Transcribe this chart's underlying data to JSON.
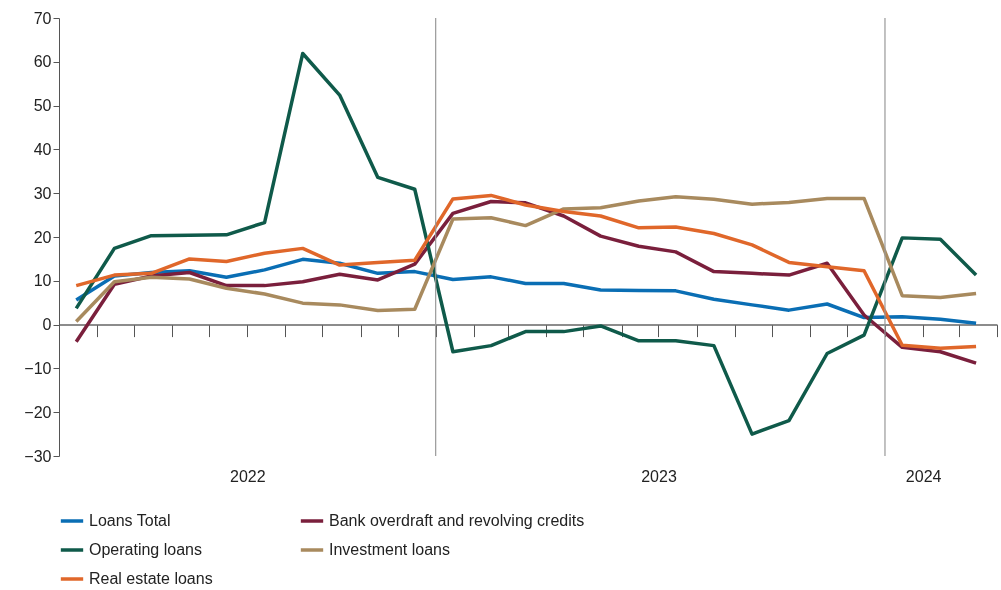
{
  "chart_data": {
    "type": "line",
    "x": [
      "2022-03-15",
      "2022-04-15",
      "2022-05-15",
      "2022-06-15",
      "2022-07-15",
      "2022-08-15",
      "2022-09-15",
      "2022-10-15",
      "2022-11-15",
      "2022-12-15",
      "2023-01-15",
      "2023-02-15",
      "2023-03-15",
      "2023-04-15",
      "2023-05-15",
      "2023-06-15",
      "2023-07-15",
      "2023-08-15",
      "2023-09-15",
      "2023-10-15",
      "2023-11-15",
      "2023-12-15",
      "2024-01-15",
      "2024-02-15",
      "2024-03-15"
    ],
    "series": [
      {
        "name": "Loans Total",
        "color": "#0a6eb4",
        "values": [
          5.6,
          11.1,
          11.9,
          12.3,
          10.8,
          12.5,
          14.9,
          14.0,
          11.7,
          12.1,
          10.3,
          10.9,
          9.4,
          9.4,
          7.9,
          7.8,
          7.7,
          5.8,
          4.5,
          3.3,
          4.7,
          1.6,
          1.8,
          1.2,
          0.3
        ]
      },
      {
        "name": "Bank overdraft and revolving credits",
        "color": "#7a1f3c",
        "values": [
          -3.9,
          9.2,
          11.1,
          11.9,
          8.9,
          8.9,
          9.8,
          11.5,
          10.2,
          13.8,
          25.4,
          28.1,
          27.8,
          24.8,
          20.2,
          17.9,
          16.6,
          12.1,
          11.7,
          11.3,
          14.0,
          2.2,
          -5.2,
          -6.2,
          -8.8
        ]
      },
      {
        "name": "Operating loans",
        "color": "#0f5a4a",
        "values": [
          3.7,
          17.4,
          20.3,
          20.4,
          20.5,
          23.3,
          61.9,
          52.4,
          33.6,
          30.9,
          -6.2,
          -4.8,
          -1.6,
          -1.6,
          -0.3,
          -3.7,
          -3.7,
          -4.8,
          -25.0,
          -21.9,
          -6.6,
          -2.4,
          19.8,
          19.5,
          11.3
        ]
      },
      {
        "name": "Investment loans",
        "color": "#a88a5e",
        "values": [
          0.7,
          9.8,
          10.8,
          10.4,
          8.3,
          7.0,
          4.9,
          4.5,
          3.2,
          3.5,
          24.1,
          24.4,
          22.6,
          26.4,
          26.7,
          28.2,
          29.2,
          28.6,
          27.5,
          27.9,
          28.8,
          28.8,
          6.6,
          6.2,
          7.1
        ]
      },
      {
        "name": "Real estate loans",
        "color": "#e0672a",
        "values": [
          8.9,
          11.3,
          11.7,
          15.0,
          14.4,
          16.3,
          17.4,
          13.6,
          14.2,
          14.7,
          28.7,
          29.5,
          27.3,
          25.8,
          24.8,
          22.1,
          22.3,
          20.8,
          18.2,
          14.2,
          13.2,
          12.3,
          -4.7,
          -5.4,
          -5.0
        ]
      }
    ],
    "xlim": [
      "2022-03-01",
      "2024-04-01"
    ],
    "xticks": [
      {
        "value": "2022-04-01",
        "label": null
      },
      {
        "value": "2022-05-01",
        "label": null
      },
      {
        "value": "2022-06-01",
        "label": null
      },
      {
        "value": "2022-07-01",
        "label": null
      },
      {
        "value": "2022-08-01",
        "label": "2022"
      },
      {
        "value": "2022-09-01",
        "label": null
      },
      {
        "value": "2022-10-01",
        "label": null
      },
      {
        "value": "2022-11-01",
        "label": null
      },
      {
        "value": "2022-12-01",
        "label": null
      },
      {
        "value": "2023-01-01",
        "label": null
      },
      {
        "value": "2023-02-01",
        "label": null
      },
      {
        "value": "2023-03-01",
        "label": null
      },
      {
        "value": "2023-04-01",
        "label": null
      },
      {
        "value": "2023-05-01",
        "label": null
      },
      {
        "value": "2023-06-01",
        "label": null
      },
      {
        "value": "2023-07-01",
        "label": "2023"
      },
      {
        "value": "2023-08-01",
        "label": null
      },
      {
        "value": "2023-09-01",
        "label": null
      },
      {
        "value": "2023-10-01",
        "label": null
      },
      {
        "value": "2023-11-01",
        "label": null
      },
      {
        "value": "2023-12-01",
        "label": null
      },
      {
        "value": "2024-01-01",
        "label": null
      },
      {
        "value": "2024-02-01",
        "label": "2024"
      },
      {
        "value": "2024-03-01",
        "label": null
      },
      {
        "value": "2024-04-01",
        "label": null
      }
    ],
    "ylim": [
      -30,
      70
    ],
    "yticks": [
      -30,
      -20,
      -10,
      0,
      10,
      20,
      30,
      40,
      50,
      60,
      70
    ],
    "ref_lines": [
      {
        "axis": "x",
        "value": "2023-01-01",
        "color": "#999999"
      },
      {
        "axis": "x",
        "value": "2024-01-01",
        "color": "#999999"
      }
    ],
    "legend": "bottom"
  }
}
